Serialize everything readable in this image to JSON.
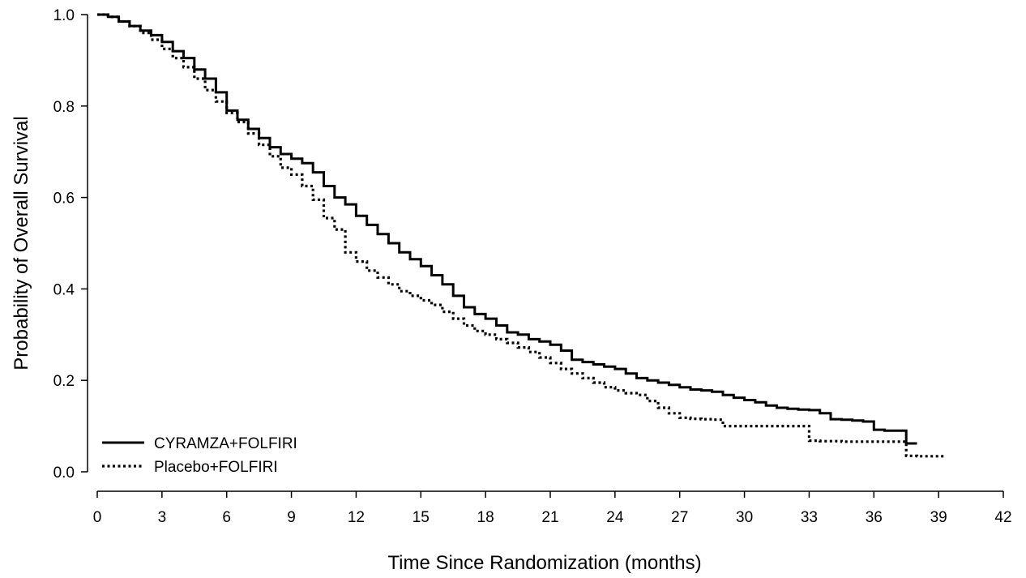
{
  "chart_data": {
    "type": "line",
    "title": "",
    "xlabel": "Time Since Randomization (months)",
    "ylabel": "Probability of Overall Survival",
    "xlim": [
      0,
      42
    ],
    "ylim": [
      0,
      1.0
    ],
    "xticks": [
      0,
      3,
      6,
      9,
      12,
      15,
      18,
      21,
      24,
      27,
      30,
      33,
      36,
      39,
      42
    ],
    "xtick_labels": [
      "0",
      "3",
      "6",
      "9",
      "12",
      "15",
      "18",
      "21",
      "24",
      "27",
      "30",
      "33",
      "36",
      "39",
      "42"
    ],
    "yticks": [
      0,
      0.2,
      0.4,
      0.6,
      0.8,
      1.0
    ],
    "ytick_labels": [
      "0.0",
      "0.2",
      "0.4",
      "0.6",
      "0.8",
      "1.0"
    ],
    "grid": false,
    "legend_position": "bottom-left",
    "series": [
      {
        "name": "CYRAMZA+FOLFIRI",
        "style": "solid",
        "color": "#000000",
        "x": [
          0,
          0.5,
          1,
          1.5,
          2,
          2.5,
          3,
          3.5,
          4,
          4.5,
          5,
          5.5,
          6,
          6.5,
          7,
          7.5,
          8,
          8.5,
          9,
          9.5,
          10,
          10.5,
          11,
          11.5,
          12,
          12.5,
          13,
          13.5,
          14,
          14.5,
          15,
          15.5,
          16,
          16.5,
          17,
          17.5,
          18,
          18.5,
          19,
          19.5,
          20,
          20.5,
          21,
          21.5,
          22,
          22.5,
          23,
          23.5,
          24,
          24.5,
          25,
          25.5,
          26,
          26.5,
          27,
          27.5,
          28,
          28.5,
          29,
          29.5,
          30,
          30.5,
          31,
          31.5,
          32,
          32.5,
          33,
          33.5,
          34,
          34.5,
          35,
          35.5,
          36,
          36.5,
          37,
          37.5,
          38
        ],
        "y": [
          1.0,
          0.995,
          0.985,
          0.975,
          0.965,
          0.955,
          0.94,
          0.92,
          0.905,
          0.88,
          0.86,
          0.83,
          0.79,
          0.77,
          0.75,
          0.73,
          0.71,
          0.695,
          0.685,
          0.675,
          0.655,
          0.625,
          0.6,
          0.585,
          0.56,
          0.54,
          0.52,
          0.5,
          0.48,
          0.465,
          0.45,
          0.43,
          0.41,
          0.385,
          0.36,
          0.345,
          0.335,
          0.32,
          0.305,
          0.3,
          0.29,
          0.285,
          0.278,
          0.265,
          0.245,
          0.24,
          0.235,
          0.23,
          0.225,
          0.215,
          0.205,
          0.2,
          0.195,
          0.19,
          0.185,
          0.18,
          0.178,
          0.175,
          0.168,
          0.162,
          0.157,
          0.152,
          0.145,
          0.14,
          0.138,
          0.136,
          0.135,
          0.128,
          0.115,
          0.114,
          0.112,
          0.11,
          0.092,
          0.09,
          0.09,
          0.062,
          0.062
        ]
      },
      {
        "name": "Placebo+FOLFIRI",
        "style": "dotted",
        "color": "#000000",
        "x": [
          0,
          0.5,
          1,
          1.5,
          2,
          2.5,
          3,
          3.5,
          4,
          4.5,
          5,
          5.5,
          6,
          6.5,
          7,
          7.5,
          8,
          8.5,
          9,
          9.5,
          10,
          10.5,
          11,
          11.5,
          12,
          12.5,
          13,
          13.5,
          14,
          14.5,
          15,
          15.5,
          16,
          16.5,
          17,
          17.5,
          18,
          18.5,
          19,
          19.5,
          20,
          20.5,
          21,
          21.5,
          22,
          22.5,
          23,
          23.5,
          24,
          24.5,
          25,
          25.5,
          26,
          26.5,
          27,
          27.5,
          28,
          28.5,
          29,
          29.5,
          30,
          30.5,
          31,
          31.5,
          32,
          32.5,
          33,
          33.5,
          34,
          34.5,
          35,
          35.5,
          36,
          36.5,
          37,
          37.5,
          38,
          38.5,
          39,
          39.3
        ],
        "y": [
          1.0,
          0.995,
          0.985,
          0.975,
          0.96,
          0.945,
          0.925,
          0.905,
          0.885,
          0.86,
          0.835,
          0.81,
          0.785,
          0.765,
          0.74,
          0.715,
          0.69,
          0.665,
          0.65,
          0.625,
          0.595,
          0.555,
          0.53,
          0.48,
          0.46,
          0.44,
          0.425,
          0.41,
          0.395,
          0.385,
          0.375,
          0.365,
          0.35,
          0.335,
          0.32,
          0.308,
          0.3,
          0.29,
          0.282,
          0.272,
          0.262,
          0.25,
          0.238,
          0.225,
          0.215,
          0.205,
          0.195,
          0.185,
          0.178,
          0.172,
          0.168,
          0.155,
          0.14,
          0.128,
          0.118,
          0.116,
          0.115,
          0.114,
          0.1,
          0.1,
          0.1,
          0.1,
          0.1,
          0.1,
          0.1,
          0.1,
          0.068,
          0.067,
          0.067,
          0.066,
          0.066,
          0.066,
          0.066,
          0.066,
          0.066,
          0.035,
          0.034,
          0.034,
          0.034,
          0.034
        ]
      }
    ]
  }
}
